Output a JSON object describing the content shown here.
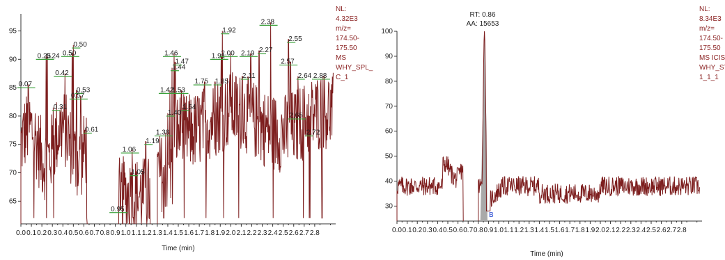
{
  "chart_data": [
    {
      "type": "line",
      "xlabel": "Time (min)",
      "xlim": [
        0.0,
        3.0
      ],
      "ylim": [
        61,
        98
      ],
      "x_ticks": [
        "0.0",
        "0.1",
        "0.2",
        "0.3",
        "0.4",
        "0.5",
        "0.6",
        "0.7",
        "0.8",
        "0.9",
        "1.0",
        "1.1",
        "1.2",
        "1.3",
        "1.4",
        "1.5",
        "1.6",
        "1.7",
        "1.8",
        "1.9",
        "2.0",
        "2.1",
        "2.2",
        "2.3",
        "2.4",
        "2.5",
        "2.6",
        "2.7",
        "2.8"
      ],
      "y_ticks": [
        "65",
        "70",
        "75",
        "80",
        "85",
        "90",
        "95"
      ],
      "side_labels": [
        "NL:",
        "4.32E3",
        "m/z=",
        "174.50-",
        "175.50",
        "MS",
        "WHY_SPL_",
        "C_1"
      ],
      "gaps": [
        [
          0.63,
          0.93
        ],
        [
          1.23,
          1.3
        ]
      ],
      "peaks": [
        {
          "label": "0.07",
          "x": 0.07,
          "y": 84.5
        },
        {
          "label": "0.24",
          "x": 0.24,
          "y": 89.5
        },
        {
          "label": "0.25",
          "x": 0.25,
          "y": 89.5
        },
        {
          "label": "0.31",
          "x": 0.31,
          "y": 80.5
        },
        {
          "label": "0.42",
          "x": 0.42,
          "y": 86.5
        },
        {
          "label": "0.50",
          "x": 0.5,
          "y": 91.5
        },
        {
          "label": "0.50",
          "x": 0.49,
          "y": 90.0
        },
        {
          "label": "0.53",
          "x": 0.53,
          "y": 83.5
        },
        {
          "label": "0.57",
          "x": 0.57,
          "y": 82.5
        },
        {
          "label": "0.61",
          "x": 0.61,
          "y": 76.5
        },
        {
          "label": "0.95",
          "x": 0.95,
          "y": 62.5
        },
        {
          "label": "1.05",
          "x": 1.05,
          "y": 69.0
        },
        {
          "label": "1.06",
          "x": 1.06,
          "y": 73.0
        },
        {
          "label": "1.19",
          "x": 1.19,
          "y": 74.5
        },
        {
          "label": "1.38",
          "x": 1.38,
          "y": 76.0
        },
        {
          "label": "1.40",
          "x": 1.4,
          "y": 79.5
        },
        {
          "label": "1.42",
          "x": 1.42,
          "y": 83.5
        },
        {
          "label": "1.44",
          "x": 1.44,
          "y": 87.5
        },
        {
          "label": "1.46",
          "x": 1.46,
          "y": 90.0
        },
        {
          "label": "1.47",
          "x": 1.47,
          "y": 88.5
        },
        {
          "label": "1.53",
          "x": 1.53,
          "y": 83.5
        },
        {
          "label": "1.54",
          "x": 1.54,
          "y": 80.5
        },
        {
          "label": "1.75",
          "x": 1.75,
          "y": 85.0
        },
        {
          "label": "1.85",
          "x": 1.85,
          "y": 85.0
        },
        {
          "label": "1.91",
          "x": 1.91,
          "y": 89.5
        },
        {
          "label": "1.92",
          "x": 1.92,
          "y": 94.0
        },
        {
          "label": "2.00",
          "x": 2.0,
          "y": 90.0
        },
        {
          "label": "2.11",
          "x": 2.11,
          "y": 86.0
        },
        {
          "label": "2.19",
          "x": 2.19,
          "y": 90.0
        },
        {
          "label": "2.27",
          "x": 2.27,
          "y": 90.5
        },
        {
          "label": "2.38",
          "x": 2.38,
          "y": 95.5
        },
        {
          "label": "2.55",
          "x": 2.55,
          "y": 92.5
        },
        {
          "label": "2.57",
          "x": 2.57,
          "y": 88.5
        },
        {
          "label": "2.64",
          "x": 2.64,
          "y": 86.0
        },
        {
          "label": "2.65",
          "x": 2.65,
          "y": 79.0
        },
        {
          "label": "2.72",
          "x": 2.72,
          "y": 76.0
        },
        {
          "label": "2.88",
          "x": 2.88,
          "y": 86.0
        }
      ]
    },
    {
      "type": "line",
      "xlabel": "Time (min)",
      "xlim": [
        0.0,
        3.0
      ],
      "ylim": [
        24,
        100
      ],
      "x_ticks": [
        "0.0",
        "0.1",
        "0.2",
        "0.3",
        "0.4",
        "0.5",
        "0.6",
        "0.7",
        "0.8",
        "0.9",
        "1.0",
        "1.1",
        "1.2",
        "1.3",
        "1.4",
        "1.5",
        "1.6",
        "1.7",
        "1.8",
        "1.9",
        "2.0",
        "2.1",
        "2.2",
        "2.3",
        "2.4",
        "2.5",
        "2.6",
        "2.7",
        "2.8"
      ],
      "y_ticks": [
        "30",
        "40",
        "50",
        "60",
        "70",
        "80",
        "90",
        "100"
      ],
      "side_labels": [
        "NL:",
        "8.34E3",
        "m/z=",
        "174.50-",
        "175.50",
        "MS  ICIS",
        "WHY_STD",
        "1_1_1"
      ],
      "annotation": [
        "RT: 0.86",
        "AA: 15653"
      ],
      "peak": {
        "rt": 0.86,
        "height": 100
      },
      "baseline_level": 38,
      "gaps": [
        [
          0.65,
          0.8
        ]
      ],
      "marker": "B"
    }
  ]
}
